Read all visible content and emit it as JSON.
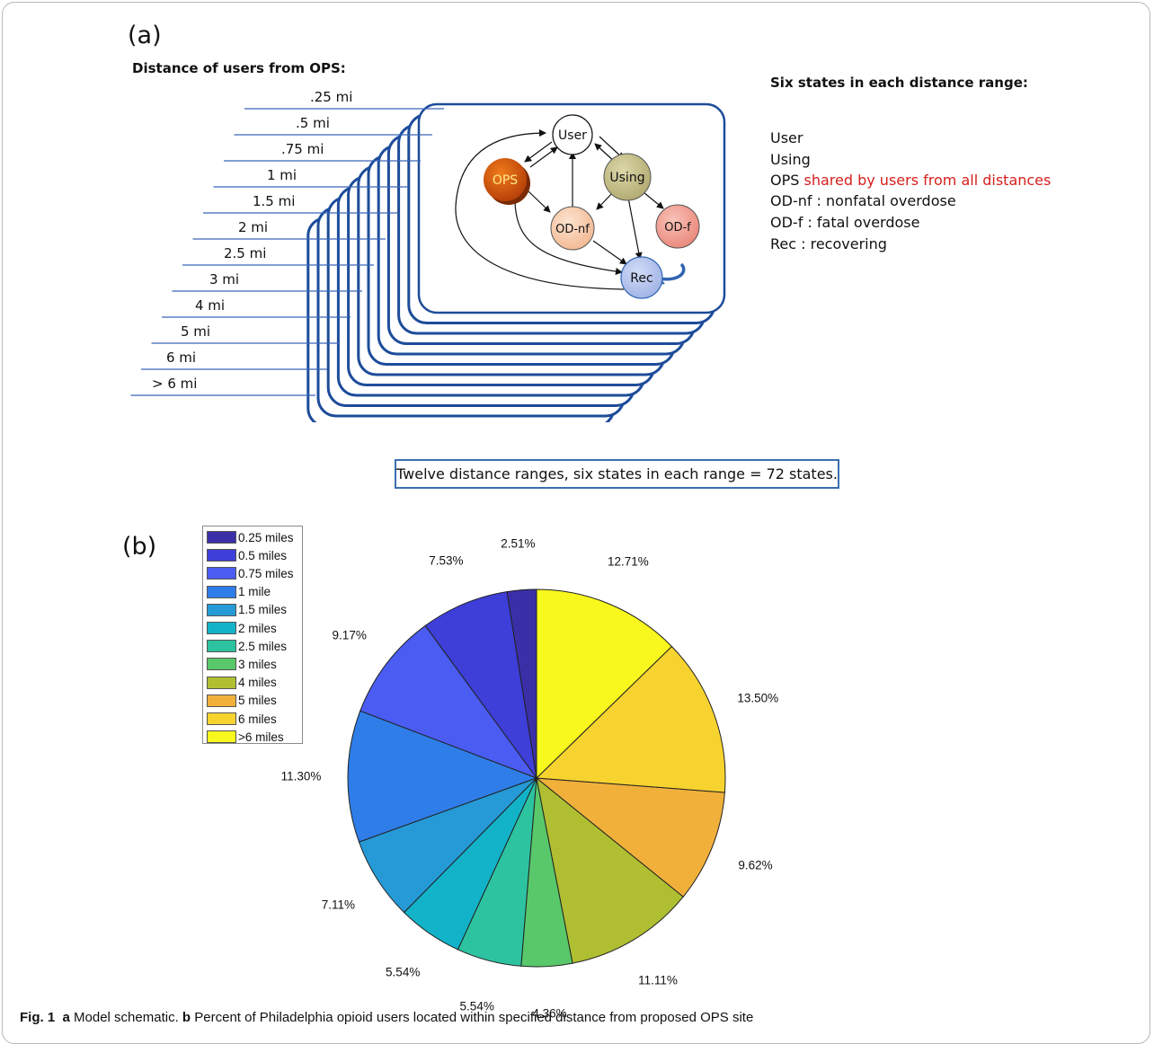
{
  "panel_a": {
    "label": "(a)",
    "distance_heading": "Distance of users from OPS:",
    "distances": [
      ".25 mi",
      ".5 mi",
      ".75 mi",
      "1 mi",
      "1.5 mi",
      "2 mi",
      "2.5 mi",
      "3 mi",
      "4 mi",
      "5 mi",
      "6 mi",
      "> 6 mi"
    ],
    "nodes": {
      "user": "User",
      "using": "Using",
      "ops": "OPS",
      "od_nf": "OD-nf",
      "od_f": "OD-f",
      "rec": "Rec"
    },
    "states_heading": "Six states in each distance range:",
    "states": {
      "user": "User",
      "using": "Using",
      "ops_prefix": "OPS",
      "ops_note": "shared by users from all distances",
      "od_nf": "OD-nf : nonfatal overdose",
      "od_f": "OD-f :  fatal overdose",
      "rec": "Rec : recovering"
    },
    "summary": "Twelve distance ranges, six states in each range = 72 states.",
    "colors": {
      "card_border": "#1d4c9a",
      "ops_node": "#d45a08",
      "using_node": "#c9c390",
      "od_nf_node": "#f7c9a8",
      "od_f_node": "#f29e93",
      "rec_node": "#b8c7ee",
      "note_red": "#d4201c"
    }
  },
  "panel_b": {
    "label": "(b)"
  },
  "chart_data": {
    "type": "pie",
    "categories": [
      "0.25 miles",
      "0.5 miles",
      "0.75 miles",
      "1 mile",
      "1.5 miles",
      "2 miles",
      "2.5 miles",
      "3 miles",
      "4 miles",
      "5 miles",
      "6 miles",
      ">6 miles"
    ],
    "values": [
      2.51,
      7.53,
      9.17,
      11.3,
      7.11,
      5.54,
      5.54,
      4.36,
      11.11,
      9.62,
      13.5,
      12.71
    ],
    "labels": [
      "2.51%",
      "7.53%",
      "9.17%",
      "11.30%",
      "7.11%",
      "5.54%",
      "5.54%",
      "4.36%",
      "11.11%",
      "9.62%",
      "13.50%",
      "12.71%"
    ],
    "colors": [
      "#3b2fa8",
      "#3e3ed9",
      "#4a5cf2",
      "#2f7de8",
      "#259ad6",
      "#12b3c8",
      "#2dc3a0",
      "#58c86a",
      "#b0bf32",
      "#f0b03a",
      "#f7d32f",
      "#f8f81e"
    ],
    "direction": "counterclockwise from top",
    "legend_position": "top-left"
  },
  "caption": {
    "fig_label": "Fig. 1",
    "a_label": "a",
    "a_text": "Model schematic.",
    "b_label": "b",
    "b_text": "Percent of Philadelphia opioid users located within specified distance from proposed OPS site"
  }
}
